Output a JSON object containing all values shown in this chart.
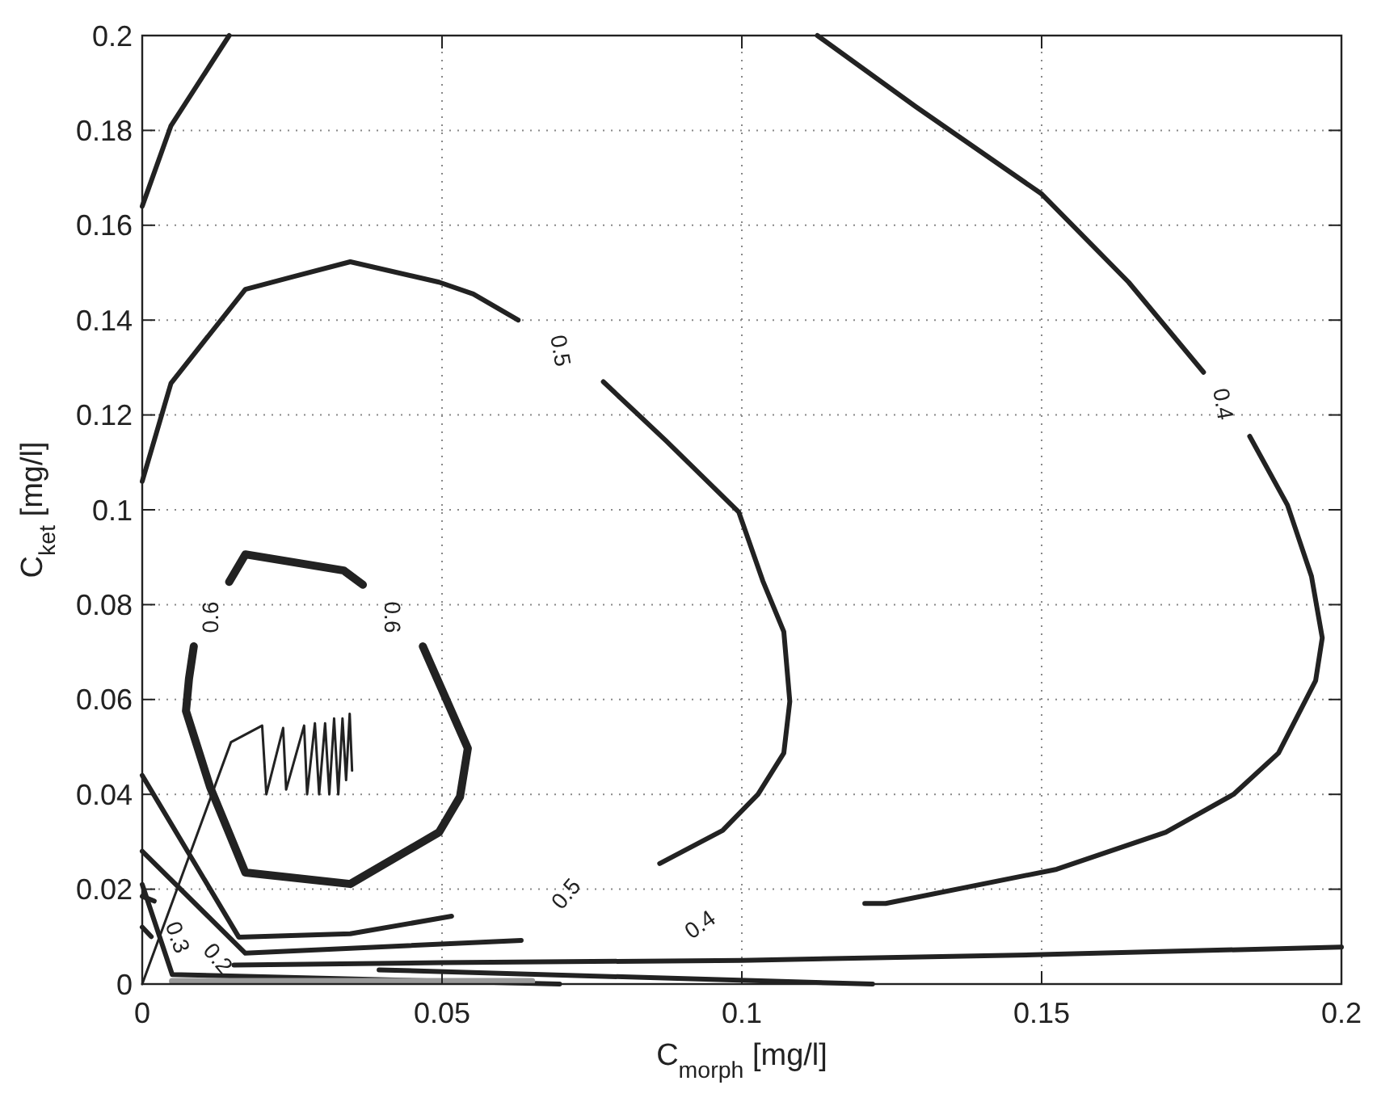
{
  "chart_data": {
    "type": "line",
    "xlabel": "C$_{morph}$ [mg/l]",
    "ylabel": "C$_{ket}$ [mg/l]",
    "xlim": [
      0,
      0.2
    ],
    "ylim": [
      0,
      0.2
    ],
    "xticks": [
      0,
      0.05,
      0.1,
      0.15,
      0.2
    ],
    "yticks": [
      0,
      0.02,
      0.04,
      0.06,
      0.08,
      0.1,
      0.12,
      0.14,
      0.16,
      0.18,
      0.2
    ],
    "grid": true,
    "line_style": "solid",
    "marker": "none",
    "series": [
      {
        "color": "#222222",
        "x": [
          0.1126,
          0.129,
          0.15,
          0.1645,
          0.177,
          null,
          0.1847,
          0.191,
          0.195,
          0.1968,
          0.1957,
          0.1895,
          0.182,
          0.1707,
          0.1525,
          0.124,
          0.1205
        ],
        "values": [
          0.2,
          0.185,
          0.1666,
          0.148,
          0.129,
          null,
          0.1155,
          0.101,
          0.086,
          0.073,
          0.064,
          0.0487,
          0.04,
          0.032,
          0.0242,
          0.017,
          0.017
        ]
      },
      {
        "color": "#222222",
        "x": [
          0,
          0.0048,
          0.0172,
          0.0247,
          0.0347,
          0.0495,
          0.0552,
          0.0627,
          null,
          0.0769,
          0.0874,
          0.0995,
          0.1035,
          0.107,
          0.108,
          0.107,
          0.1027,
          0.0968,
          0.0863
        ],
        "values": [
          0.106,
          0.1267,
          0.1465,
          0.149,
          0.1523,
          0.148,
          0.1455,
          0.14,
          null,
          0.127,
          0.1145,
          0.0995,
          0.085,
          0.0743,
          0.0596,
          0.0487,
          0.04,
          0.0324,
          0.0254
        ]
      },
      {
        "color": "#222222",
        "x": [
          0,
          0.0048,
          0.0145
        ],
        "values": [
          0.164,
          0.181,
          0.2
        ]
      },
      {
        "color": "#222222",
        "x": [
          0.0145,
          0.0172,
          0.0336,
          0.0368,
          null,
          0.0468,
          0.0543,
          0.053,
          0.0495,
          0.0347,
          0.0172,
          0.0113,
          0.0073,
          0.0078,
          0.0086
        ],
        "values": [
          0.0848,
          0.0906,
          0.0872,
          0.0842,
          null,
          0.0712,
          0.0497,
          0.0395,
          0.032,
          0.0211,
          0.0235,
          0.0416,
          0.0576,
          0.0644,
          0.0712
        ]
      },
      {
        "color": "#222222",
        "x": [
          0,
          0.0148,
          0.02,
          0.0207,
          0.0235,
          0.024,
          0.027,
          0.0275,
          0.0288,
          0.0295,
          0.0305,
          0.0312,
          0.032,
          0.0327,
          0.0334,
          0.034,
          0.0346,
          0.035
        ],
        "values": [
          0,
          0.051,
          0.0545,
          0.04,
          0.054,
          0.041,
          0.0545,
          0.04,
          0.055,
          0.04,
          0.055,
          0.04,
          0.056,
          0.04,
          0.056,
          0.043,
          0.057,
          0.045
        ]
      },
      {
        "color": "#222222",
        "x": [
          0,
          0.0161,
          0.0347,
          0.0516
        ],
        "values": [
          0.044,
          0.0099,
          0.0106,
          0.0143
        ]
      },
      {
        "color": "#222222",
        "x": [
          0,
          0.0172,
          0.0632
        ],
        "values": [
          0.028,
          0.0065,
          0.0092
        ]
      },
      {
        "color": "#222222",
        "x": [
          0.0153,
          0.05,
          0.1,
          0.15,
          0.2
        ],
        "values": [
          0.004,
          0.0045,
          0.005,
          0.0062,
          0.0078
        ]
      },
      {
        "color": "#222222",
        "x": [
          0,
          0.005,
          0.0696
        ],
        "values": [
          0.021,
          0.002,
          0
        ]
      },
      {
        "color": "#222222",
        "x": [
          0.0395,
          0.1218
        ],
        "values": [
          0.003,
          0
        ]
      },
      {
        "color": "#999999",
        "x": [
          0.005,
          0.065
        ],
        "values": [
          0.0006,
          0.0006
        ]
      },
      {
        "color": "#222222",
        "x": [
          0,
          0.002
        ],
        "values": [
          0.0185,
          0.0175
        ]
      },
      {
        "color": "#222222",
        "x": [
          0,
          0.0015
        ],
        "values": [
          0.012,
          0.01
        ]
      }
    ],
    "annotations": [
      "0.5",
      "0.4",
      "0.6",
      "0.6",
      "0.5",
      "0.4",
      "0.3",
      "0.2"
    ]
  }
}
